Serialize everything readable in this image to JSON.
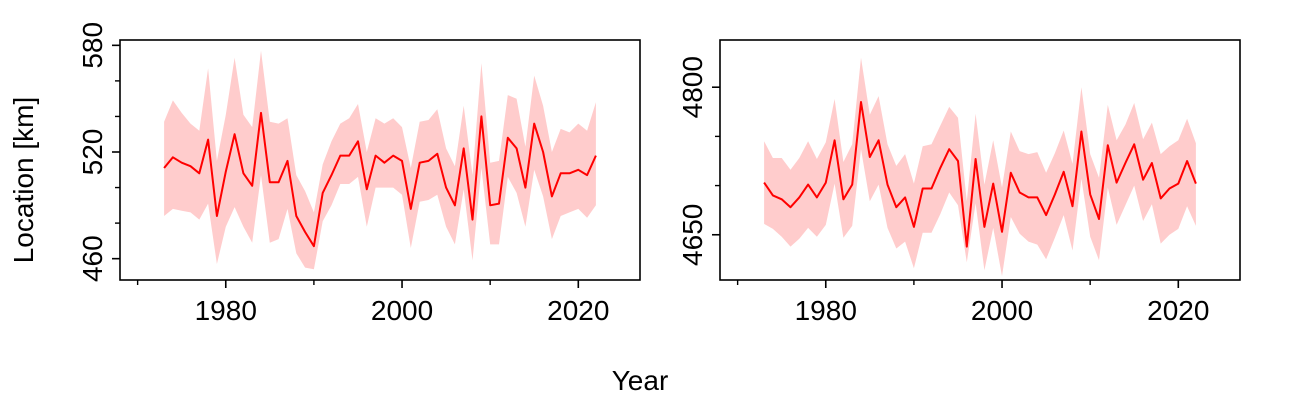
{
  "figure": {
    "xlabel": "Year",
    "ylabel": "Location [km]",
    "line_color": "#ff0000",
    "band_color": "#ffcccc"
  },
  "chart_data": [
    {
      "type": "line",
      "title": "",
      "xlim": [
        1968,
        2027
      ],
      "ylim": [
        448,
        583
      ],
      "x_ticks": [
        1980,
        2000,
        2020
      ],
      "x_tick_labels": [
        "1980",
        "2000",
        "2020"
      ],
      "x_minor_ticks": [
        1970,
        1990,
        2010
      ],
      "y_ticks": [
        460,
        520,
        580
      ],
      "y_tick_labels": [
        "460",
        "520",
        "580"
      ],
      "y_minor_ticks": [
        480,
        500,
        540,
        560
      ],
      "series": [
        {
          "name": "location",
          "x": [
            1973,
            1974,
            1975,
            1976,
            1977,
            1978,
            1979,
            1980,
            1981,
            1982,
            1983,
            1984,
            1985,
            1986,
            1987,
            1988,
            1989,
            1990,
            1991,
            1992,
            1993,
            1994,
            1995,
            1996,
            1997,
            1998,
            1999,
            2000,
            2001,
            2002,
            2003,
            2004,
            2005,
            2006,
            2007,
            2008,
            2009,
            2010,
            2011,
            2012,
            2013,
            2014,
            2015,
            2016,
            2017,
            2018,
            2019,
            2020,
            2021,
            2022
          ],
          "values": [
            511,
            517,
            514,
            512,
            508,
            527,
            484,
            509,
            530,
            508,
            501,
            542,
            503,
            503,
            515,
            484,
            475,
            467,
            497,
            507,
            518,
            518,
            526,
            499,
            518,
            514,
            518,
            515,
            488,
            514,
            515,
            519,
            500,
            490,
            522,
            482,
            540,
            490,
            491,
            528,
            522,
            500,
            536,
            520,
            495,
            508,
            508,
            510,
            507,
            518
          ],
          "upper": [
            537,
            549,
            542,
            536,
            532,
            567,
            515,
            541,
            573,
            541,
            534,
            577,
            537,
            536,
            539,
            507,
            498,
            486,
            513,
            526,
            536,
            539,
            547,
            520,
            539,
            536,
            539,
            534,
            511,
            537,
            538,
            544,
            522,
            512,
            546,
            507,
            570,
            514,
            515,
            552,
            550,
            523,
            563,
            546,
            520,
            533,
            531,
            536,
            532,
            548
          ],
          "lower": [
            484,
            488,
            487,
            486,
            482,
            491,
            457,
            478,
            489,
            478,
            469,
            507,
            469,
            471,
            488,
            463,
            455,
            454,
            481,
            490,
            502,
            502,
            506,
            478,
            500,
            500,
            500,
            496,
            466,
            492,
            493,
            496,
            478,
            468,
            499,
            459,
            511,
            468,
            468,
            506,
            497,
            478,
            510,
            495,
            471,
            484,
            486,
            488,
            483,
            490
          ]
        }
      ]
    },
    {
      "type": "line",
      "title": "",
      "xlim": [
        1968,
        2027
      ],
      "ylim": [
        4604,
        4848
      ],
      "x_ticks": [
        1980,
        2000,
        2020
      ],
      "x_tick_labels": [
        "1980",
        "2000",
        "2020"
      ],
      "x_minor_ticks": [
        1970,
        1990,
        2010
      ],
      "y_ticks": [
        4650,
        4800
      ],
      "y_tick_labels": [
        "4650",
        "4800"
      ],
      "y_minor_ticks": [
        4700,
        4750
      ],
      "series": [
        {
          "name": "location",
          "x": [
            1973,
            1974,
            1975,
            1976,
            1977,
            1978,
            1979,
            1980,
            1981,
            1982,
            1983,
            1984,
            1985,
            1986,
            1987,
            1988,
            1989,
            1990,
            1991,
            1992,
            1993,
            1994,
            1995,
            1996,
            1997,
            1998,
            1999,
            2000,
            2001,
            2002,
            2003,
            2004,
            2005,
            2006,
            2007,
            2008,
            2009,
            2010,
            2011,
            2012,
            2013,
            2014,
            2015,
            2016,
            2017,
            2018,
            2019,
            2020,
            2021,
            2022
          ],
          "values": [
            4703,
            4690,
            4686,
            4678,
            4688,
            4701,
            4688,
            4703,
            4746,
            4686,
            4701,
            4785,
            4729,
            4746,
            4701,
            4678,
            4688,
            4658,
            4697,
            4697,
            4718,
            4737,
            4725,
            4638,
            4727,
            4658,
            4702,
            4653,
            4713,
            4693,
            4688,
            4688,
            4670,
            4691,
            4714,
            4679,
            4755,
            4691,
            4666,
            4741,
            4703,
            4723,
            4742,
            4706,
            4723,
            4687,
            4697,
            4702,
            4725,
            4702
          ],
          "upper": [
            4745,
            4728,
            4728,
            4716,
            4728,
            4745,
            4727,
            4744,
            4788,
            4724,
            4742,
            4830,
            4772,
            4791,
            4742,
            4720,
            4732,
            4702,
            4740,
            4742,
            4761,
            4780,
            4769,
            4684,
            4773,
            4701,
            4746,
            4698,
            4755,
            4735,
            4732,
            4734,
            4713,
            4733,
            4756,
            4722,
            4800,
            4732,
            4708,
            4782,
            4746,
            4762,
            4784,
            4747,
            4764,
            4732,
            4740,
            4746,
            4768,
            4743
          ],
          "lower": [
            4661,
            4656,
            4648,
            4638,
            4646,
            4657,
            4648,
            4660,
            4702,
            4647,
            4659,
            4737,
            4684,
            4701,
            4657,
            4636,
            4643,
            4616,
            4652,
            4652,
            4671,
            4693,
            4680,
            4622,
            4682,
            4614,
            4657,
            4608,
            4668,
            4651,
            4643,
            4640,
            4625,
            4647,
            4670,
            4634,
            4707,
            4648,
            4624,
            4698,
            4660,
            4680,
            4700,
            4664,
            4681,
            4641,
            4650,
            4656,
            4679,
            4659
          ]
        }
      ]
    }
  ]
}
